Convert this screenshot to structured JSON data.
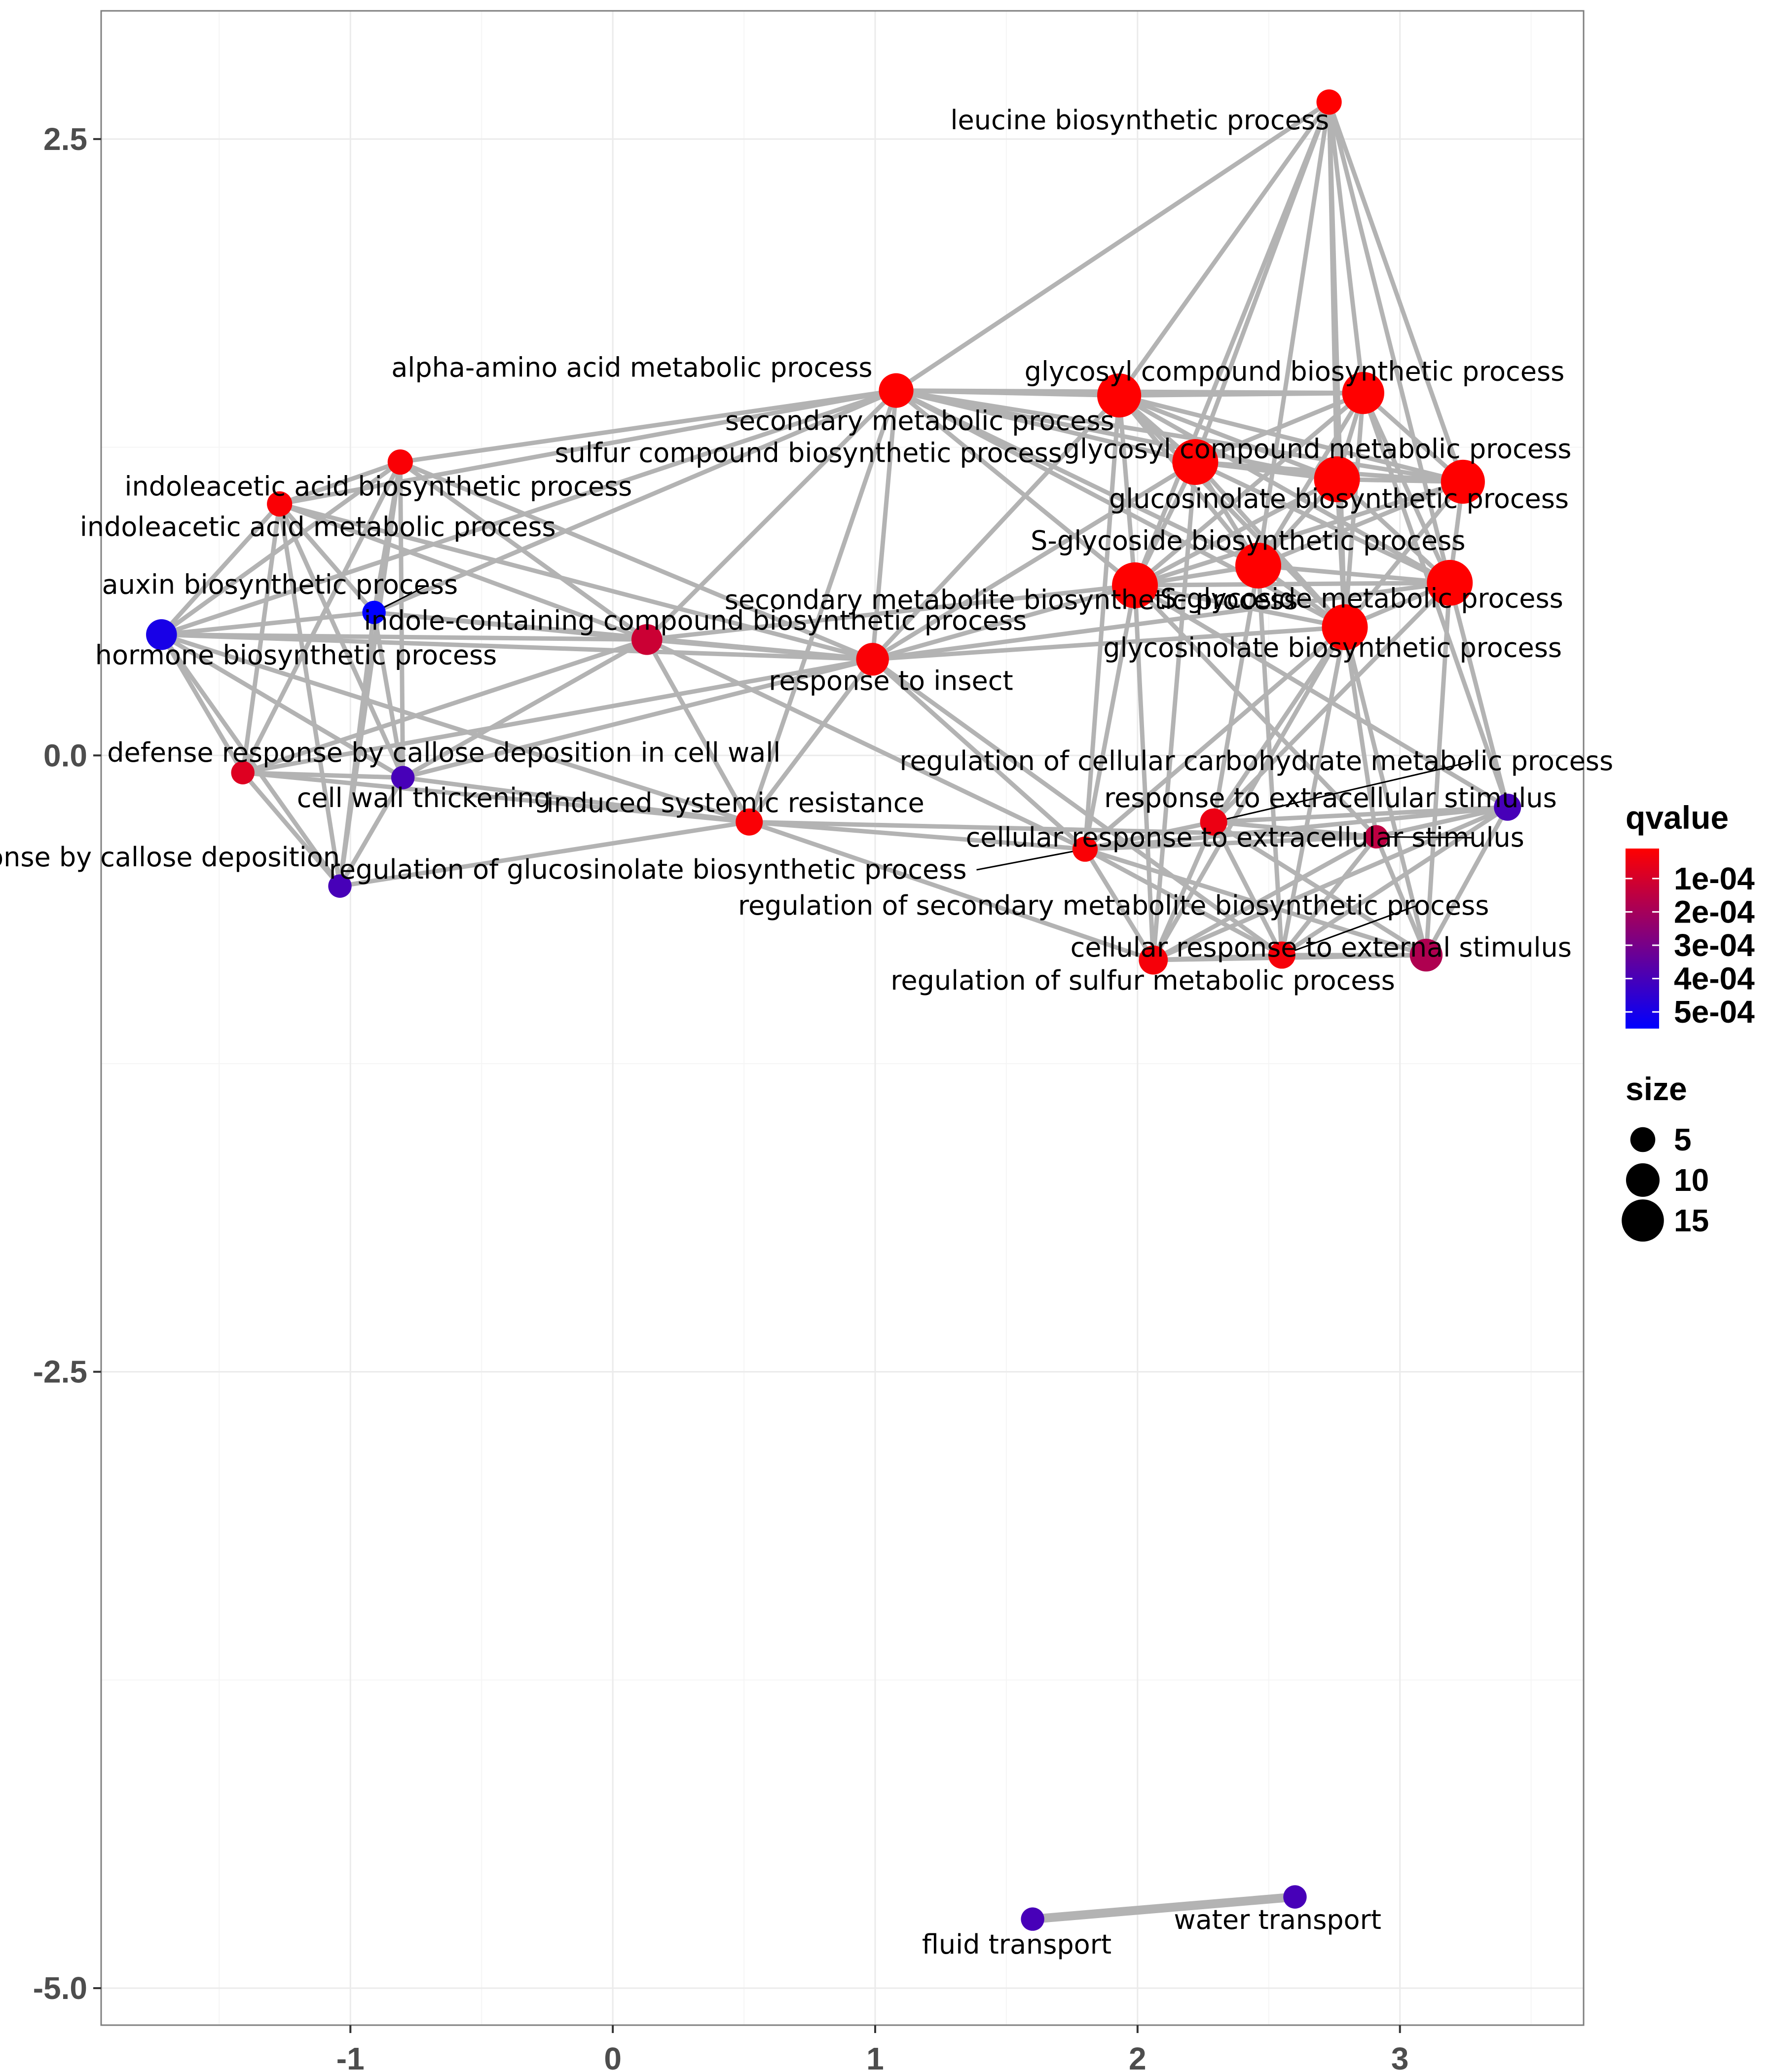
{
  "chart_data": {
    "type": "network",
    "xlim": [
      -1.95,
      3.7
    ],
    "ylim": [
      -5.15,
      3.02
    ],
    "x_ticks": [
      {
        "value": -1,
        "label": "-1"
      },
      {
        "value": 0,
        "label": "0"
      },
      {
        "value": 1,
        "label": "1"
      },
      {
        "value": 2,
        "label": "2"
      },
      {
        "value": 3,
        "label": "3"
      }
    ],
    "y_ticks": [
      {
        "value": 2.5,
        "label": "2.5"
      },
      {
        "value": 0.0,
        "label": "0.0"
      },
      {
        "value": -2.5,
        "label": "-2.5"
      },
      {
        "value": -5.0,
        "label": "-5.0"
      }
    ],
    "grid": true,
    "colors": {
      "edge": "#b3b3b3",
      "grid_major": "#ebebeb",
      "grid_minor": "#f5f5f5",
      "frame": "#7f7f7f",
      "low_qvalue": "#ff0000",
      "high_qvalue": "#0000ff"
    },
    "nodes": [
      {
        "id": "leucine",
        "label": "leucine biosynthetic process",
        "x": 2.73,
        "y": 2.65,
        "size": 4,
        "qvalue": 1e-05
      },
      {
        "id": "alpha",
        "label": "alpha-amino acid metabolic process",
        "x": 1.08,
        "y": 1.48,
        "size": 9,
        "qvalue": 1e-05
      },
      {
        "id": "secmet",
        "label": "secondary metabolic process",
        "x": 1.93,
        "y": 1.46,
        "size": 14,
        "qvalue": 1e-05
      },
      {
        "id": "glycbio1",
        "label": "glycosyl compound biosynthetic process",
        "x": 2.86,
        "y": 1.47,
        "size": 13,
        "qvalue": 1e-05
      },
      {
        "id": "sulfur",
        "label": "sulfur compound biosynthetic process",
        "x": 2.22,
        "y": 1.19,
        "size": 15,
        "qvalue": 1e-05
      },
      {
        "id": "glycmet",
        "label": "glycosyl compound metabolic process",
        "x": 3.24,
        "y": 1.11,
        "size": 14,
        "qvalue": 1e-05
      },
      {
        "id": "glucobio",
        "label": "glucosinolate biosynthetic process",
        "x": 2.76,
        "y": 1.12,
        "size": 15,
        "qvalue": 1e-05
      },
      {
        "id": "sglyc",
        "label": "S-glycoside biosynthetic process",
        "x": 2.46,
        "y": 0.77,
        "size": 15,
        "qvalue": 1e-05
      },
      {
        "id": "secbio",
        "label": "secondary metabolite biosynthetic process",
        "x": 1.99,
        "y": 0.69,
        "size": 15,
        "qvalue": 1e-05
      },
      {
        "id": "sglycmet",
        "label": "S-glycoside metabolic process",
        "x": 3.19,
        "y": 0.7,
        "size": 15,
        "qvalue": 1e-05
      },
      {
        "id": "glucobio2",
        "label": "glycosinolate biosynthetic process",
        "x": 2.79,
        "y": 0.52,
        "size": 15,
        "qvalue": 1e-05
      },
      {
        "id": "iaabio",
        "label": "indoleacetic acid biosynthetic process",
        "x": -0.81,
        "y": 1.19,
        "size": 4,
        "qvalue": 2e-05
      },
      {
        "id": "iaamet",
        "label": "indoleacetic acid metabolic process",
        "x": -1.27,
        "y": 1.02,
        "size": 4,
        "qvalue": 2e-05
      },
      {
        "id": "auxin",
        "label": "auxin biosynthetic process",
        "x": -0.91,
        "y": 0.58,
        "size": 3,
        "qvalue": 0.00055
      },
      {
        "id": "hormone",
        "label": "hormone biosynthetic process",
        "x": -1.72,
        "y": 0.49,
        "size": 7,
        "qvalue": 0.0005
      },
      {
        "id": "indole",
        "label": "indole-containing compound biosynthetic process",
        "x": 0.13,
        "y": 0.47,
        "size": 7,
        "qvalue": 0.00012
      },
      {
        "id": "insect",
        "label": "response to insect",
        "x": 0.99,
        "y": 0.39,
        "size": 8,
        "qvalue": 2e-05
      },
      {
        "id": "callosewall",
        "label": "defense response by callose deposition in cell wall",
        "x": -1.41,
        "y": -0.07,
        "size": 3,
        "qvalue": 8e-05
      },
      {
        "id": "cellwall",
        "label": "cell wall thickening",
        "x": -0.8,
        "y": -0.09,
        "size": 3,
        "qvalue": 0.0004
      },
      {
        "id": "isr",
        "label": "induced systemic resistance",
        "x": 0.52,
        "y": -0.27,
        "size": 5,
        "qvalue": 2e-05
      },
      {
        "id": "callose",
        "label": "defense response by callose deposition",
        "x": -1.04,
        "y": -0.53,
        "size": 3,
        "qvalue": 0.0004
      },
      {
        "id": "regcarb",
        "label": "regulation of cellular carbohydrate metabolic process",
        "x": 2.29,
        "y": -0.27,
        "size": 5,
        "qvalue": 5e-05
      },
      {
        "id": "respext",
        "label": "response to extracellular stimulus",
        "x": 3.41,
        "y": -0.21,
        "size": 5,
        "qvalue": 0.0004
      },
      {
        "id": "cellrespext",
        "label": "cellular response to extracellular stimulus",
        "x": 2.91,
        "y": -0.33,
        "size": 3,
        "qvalue": 0.00015
      },
      {
        "id": "regglucobio",
        "label": "regulation of glucosinolate biosynthetic process",
        "x": 1.8,
        "y": -0.38,
        "size": 4,
        "qvalue": 2e-05
      },
      {
        "id": "regsecbio",
        "label": "regulation of secondary metabolite biosynthetic process",
        "x": 2.55,
        "y": -0.81,
        "size": 5,
        "qvalue": 3e-05
      },
      {
        "id": "cellrespexternal",
        "label": "cellular response to external stimulus",
        "x": 3.1,
        "y": -0.81,
        "size": 8,
        "qvalue": 0.00018
      },
      {
        "id": "regsulfur",
        "label": "regulation of sulfur metabolic process",
        "x": 2.06,
        "y": -0.83,
        "size": 6,
        "qvalue": 3e-05
      },
      {
        "id": "fluid",
        "label": "fluid transport",
        "x": 1.6,
        "y": -4.72,
        "size": 3,
        "qvalue": 0.0004
      },
      {
        "id": "water",
        "label": "water transport",
        "x": 2.6,
        "y": -4.63,
        "size": 3,
        "qvalue": 0.0004
      }
    ],
    "edges": [
      [
        "leucine",
        "alpha"
      ],
      [
        "leucine",
        "secmet"
      ],
      [
        "leucine",
        "glycbio1"
      ],
      [
        "leucine",
        "sulfur"
      ],
      [
        "leucine",
        "glycmet"
      ],
      [
        "leucine",
        "glucobio"
      ],
      [
        "leucine",
        "sglyc"
      ],
      [
        "leucine",
        "secbio"
      ],
      [
        "leucine",
        "sglycmet"
      ],
      [
        "leucine",
        "glucobio2"
      ],
      [
        "alpha",
        "secmet"
      ],
      [
        "alpha",
        "glycbio1"
      ],
      [
        "alpha",
        "sulfur"
      ],
      [
        "alpha",
        "glucobio"
      ],
      [
        "alpha",
        "sglyc"
      ],
      [
        "alpha",
        "secbio"
      ],
      [
        "alpha",
        "insect"
      ],
      [
        "alpha",
        "indole"
      ],
      [
        "alpha",
        "iaabio"
      ],
      [
        "alpha",
        "iaamet"
      ],
      [
        "alpha",
        "hormone"
      ],
      [
        "alpha",
        "auxin"
      ],
      [
        "alpha",
        "isr"
      ],
      [
        "alpha",
        "glycmet"
      ],
      [
        "alpha",
        "glucobio2"
      ],
      [
        "secmet",
        "glycbio1"
      ],
      [
        "secmet",
        "sulfur"
      ],
      [
        "secmet",
        "glycmet"
      ],
      [
        "secmet",
        "glucobio"
      ],
      [
        "secmet",
        "sglyc"
      ],
      [
        "secmet",
        "secbio"
      ],
      [
        "secmet",
        "sglycmet"
      ],
      [
        "secmet",
        "glucobio2"
      ],
      [
        "secmet",
        "insect"
      ],
      [
        "secmet",
        "regglucobio"
      ],
      [
        "glycbio1",
        "sulfur"
      ],
      [
        "glycbio1",
        "glycmet"
      ],
      [
        "glycbio1",
        "glucobio"
      ],
      [
        "glycbio1",
        "sglyc"
      ],
      [
        "glycbio1",
        "secbio"
      ],
      [
        "glycbio1",
        "sglycmet"
      ],
      [
        "glycbio1",
        "glucobio2"
      ],
      [
        "glycbio1",
        "respext"
      ],
      [
        "sulfur",
        "glycmet"
      ],
      [
        "sulfur",
        "glucobio"
      ],
      [
        "sulfur",
        "sglyc"
      ],
      [
        "sulfur",
        "secbio"
      ],
      [
        "sulfur",
        "sglycmet"
      ],
      [
        "sulfur",
        "glucobio2"
      ],
      [
        "sulfur",
        "insect"
      ],
      [
        "sulfur",
        "regsulfur"
      ],
      [
        "glycmet",
        "glucobio"
      ],
      [
        "glycmet",
        "sglyc"
      ],
      [
        "glycmet",
        "secbio"
      ],
      [
        "glycmet",
        "sglycmet"
      ],
      [
        "glycmet",
        "glucobio2"
      ],
      [
        "glucobio",
        "sglyc"
      ],
      [
        "glucobio",
        "secbio"
      ],
      [
        "glucobio",
        "sglycmet"
      ],
      [
        "glucobio",
        "glucobio2"
      ],
      [
        "sglyc",
        "secbio"
      ],
      [
        "sglyc",
        "sglycmet"
      ],
      [
        "sglyc",
        "glucobio2"
      ],
      [
        "sglyc",
        "regsecbio"
      ],
      [
        "sglyc",
        "regcarb"
      ],
      [
        "secbio",
        "sglycmet"
      ],
      [
        "secbio",
        "glucobio2"
      ],
      [
        "secbio",
        "insect"
      ],
      [
        "secbio",
        "indole"
      ],
      [
        "secbio",
        "regglucobio"
      ],
      [
        "secbio",
        "regsulfur"
      ],
      [
        "secbio",
        "cellrespext"
      ],
      [
        "secbio",
        "respext"
      ],
      [
        "sglycmet",
        "glucobio2"
      ],
      [
        "sglycmet",
        "respext"
      ],
      [
        "sglycmet",
        "cellrespexternal"
      ],
      [
        "sglycmet",
        "regcarb"
      ],
      [
        "glucobio2",
        "regcarb"
      ],
      [
        "glucobio2",
        "regsecbio"
      ],
      [
        "glucobio2",
        "cellrespext"
      ],
      [
        "glucobio2",
        "regsulfur"
      ],
      [
        "glucobio2",
        "cellrespexternal"
      ],
      [
        "glucobio2",
        "regglucobio"
      ],
      [
        "glucobio2",
        "insect"
      ],
      [
        "iaabio",
        "iaamet"
      ],
      [
        "iaabio",
        "auxin"
      ],
      [
        "iaabio",
        "hormone"
      ],
      [
        "iaabio",
        "indole"
      ],
      [
        "iaabio",
        "insect"
      ],
      [
        "iaabio",
        "callosewall"
      ],
      [
        "iaabio",
        "cellwall"
      ],
      [
        "iaabio",
        "callose"
      ],
      [
        "iaamet",
        "auxin"
      ],
      [
        "iaamet",
        "hormone"
      ],
      [
        "iaamet",
        "indole"
      ],
      [
        "iaamet",
        "callosewall"
      ],
      [
        "iaamet",
        "cellwall"
      ],
      [
        "iaamet",
        "callose"
      ],
      [
        "iaamet",
        "insect"
      ],
      [
        "auxin",
        "hormone"
      ],
      [
        "auxin",
        "indole"
      ],
      [
        "auxin",
        "callose"
      ],
      [
        "auxin",
        "cellwall"
      ],
      [
        "auxin",
        "insect"
      ],
      [
        "hormone",
        "indole"
      ],
      [
        "hormone",
        "insect"
      ],
      [
        "hormone",
        "callosewall"
      ],
      [
        "hormone",
        "cellwall"
      ],
      [
        "hormone",
        "callose"
      ],
      [
        "hormone",
        "isr"
      ],
      [
        "indole",
        "insect"
      ],
      [
        "indole",
        "isr"
      ],
      [
        "indole",
        "callosewall"
      ],
      [
        "indole",
        "cellwall"
      ],
      [
        "indole",
        "regglucobio"
      ],
      [
        "insect",
        "isr"
      ],
      [
        "insect",
        "callosewall"
      ],
      [
        "insect",
        "cellwall"
      ],
      [
        "insect",
        "regglucobio"
      ],
      [
        "insect",
        "regsecbio"
      ],
      [
        "insect",
        "sglycmet"
      ],
      [
        "callosewall",
        "cellwall"
      ],
      [
        "callosewall",
        "callose"
      ],
      [
        "callosewall",
        "isr"
      ],
      [
        "cellwall",
        "callose"
      ],
      [
        "cellwall",
        "isr"
      ],
      [
        "isr",
        "regglucobio"
      ],
      [
        "isr",
        "cellrespext"
      ],
      [
        "isr",
        "regsulfur"
      ],
      [
        "isr",
        "callose"
      ],
      [
        "regcarb",
        "respext"
      ],
      [
        "regcarb",
        "cellrespext"
      ],
      [
        "regcarb",
        "regglucobio"
      ],
      [
        "regcarb",
        "regsecbio"
      ],
      [
        "regcarb",
        "cellrespexternal"
      ],
      [
        "regcarb",
        "regsulfur"
      ],
      [
        "respext",
        "cellrespext"
      ],
      [
        "respext",
        "cellrespexternal"
      ],
      [
        "respext",
        "regsecbio"
      ],
      [
        "respext",
        "regsulfur"
      ],
      [
        "respext",
        "regglucobio"
      ],
      [
        "cellrespext",
        "cellrespexternal"
      ],
      [
        "cellrespext",
        "regsecbio"
      ],
      [
        "cellrespext",
        "regglucobio"
      ],
      [
        "cellrespext",
        "regsulfur"
      ],
      [
        "regglucobio",
        "regsecbio"
      ],
      [
        "regglucobio",
        "regsulfur"
      ],
      [
        "regglucobio",
        "cellrespexternal"
      ],
      [
        "regsecbio",
        "cellrespexternal"
      ],
      [
        "regsecbio",
        "regsulfur"
      ],
      [
        "cellrespexternal",
        "regsulfur"
      ],
      [
        "fluid",
        "water"
      ]
    ],
    "legend": {
      "placement": "right",
      "color_title": "qvalue",
      "color_breaks": [
        {
          "value": 0.0001,
          "label": "1e-04"
        },
        {
          "value": 0.0002,
          "label": "2e-04"
        },
        {
          "value": 0.0003,
          "label": "3e-04"
        },
        {
          "value": 0.0004,
          "label": "4e-04"
        },
        {
          "value": 0.0005,
          "label": "5e-04"
        }
      ],
      "color_range": [
        1e-05,
        0.00055
      ],
      "size_title": "size",
      "size_breaks": [
        {
          "value": 5,
          "label": "5"
        },
        {
          "value": 10,
          "label": "10"
        },
        {
          "value": 15,
          "label": "15"
        }
      ]
    }
  }
}
